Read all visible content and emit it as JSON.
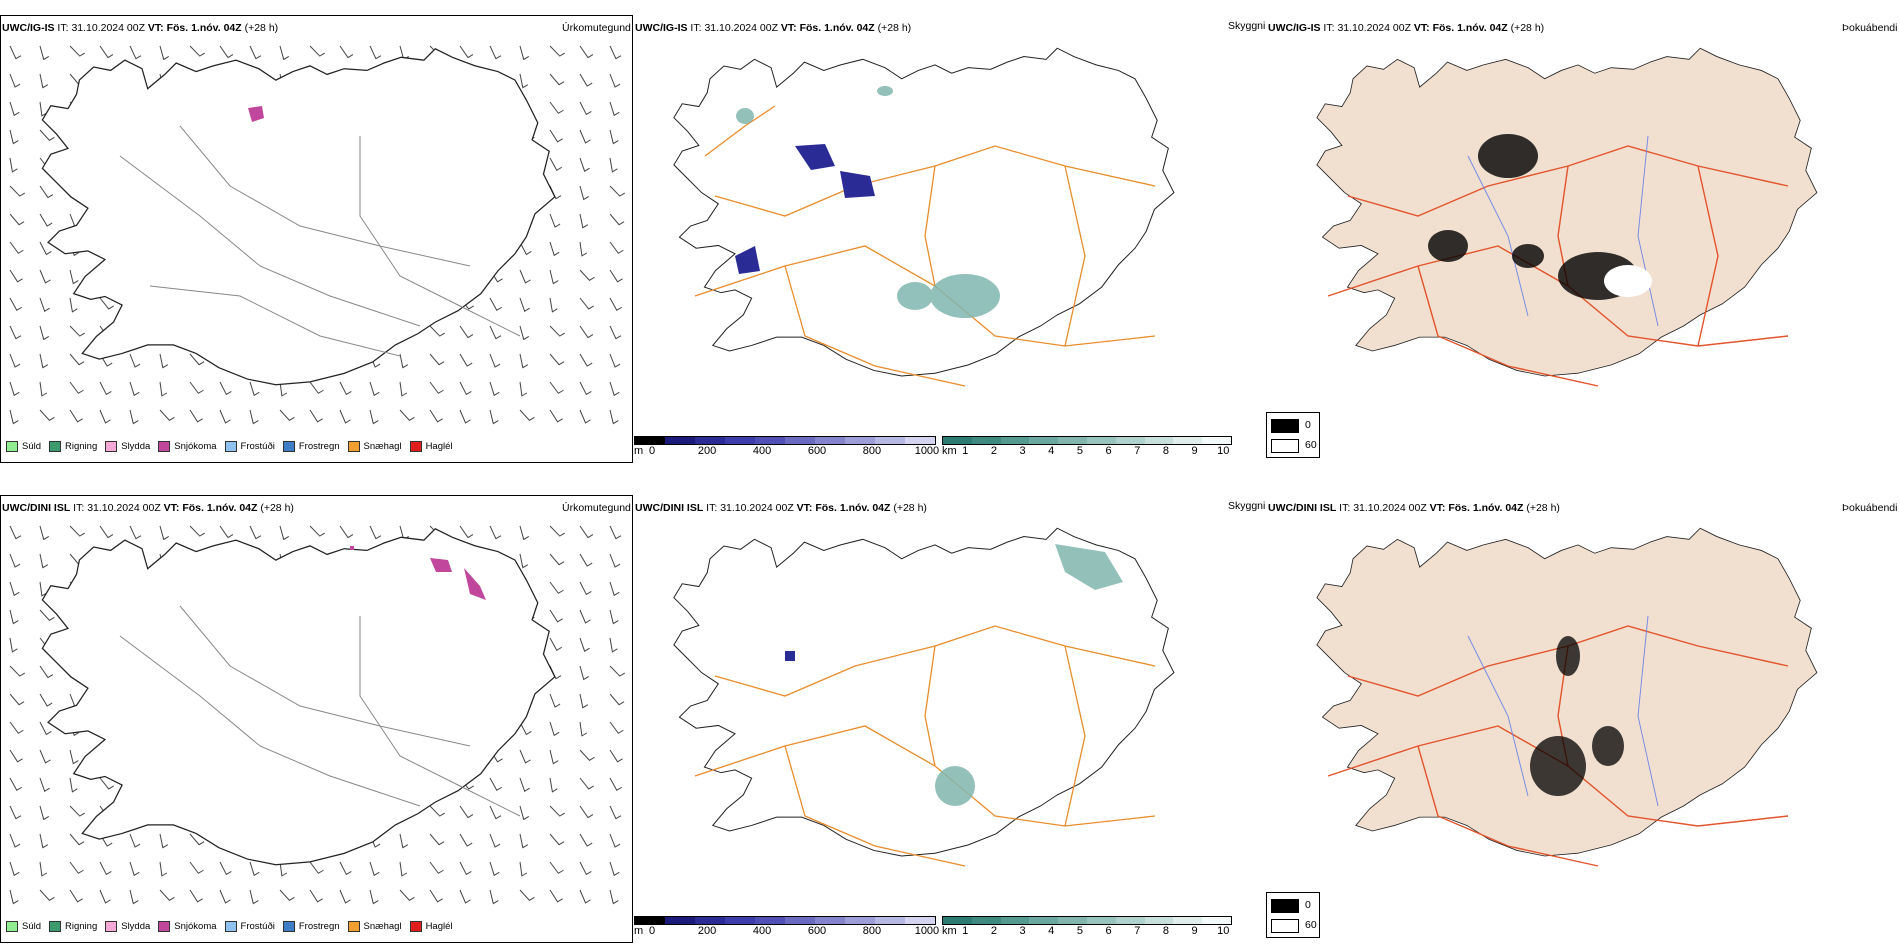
{
  "rows": [
    {
      "model": "UWC/IG-IS",
      "it_label": "IT:",
      "it_value": "31.10.2024 00Z",
      "vt_label": "VT:",
      "vt_value": "Fös. 1.nóv. 04Z",
      "lead": "(+28 h)",
      "precip_title": "Úrkomutegund",
      "cloud_title": "Skyggni",
      "fog_title": "Þokuábendi"
    },
    {
      "model": "UWC/DINI ISL",
      "it_label": "IT:",
      "it_value": "31.10.2024 00Z",
      "vt_label": "VT:",
      "vt_value": "Fös. 1.nóv. 04Z",
      "lead": "(+28 h)",
      "precip_title": "Úrkomutegund",
      "cloud_title": "Skyggni",
      "fog_title": "Þokuábendi"
    }
  ],
  "precip_legend": [
    {
      "label": "Súld",
      "color": "#90ee90"
    },
    {
      "label": "Rigning",
      "color": "#3c9b6e"
    },
    {
      "label": "Slydda",
      "color": "#f4a9d6"
    },
    {
      "label": "Snjókoma",
      "color": "#c0479b"
    },
    {
      "label": "Frostúði",
      "color": "#8ec2f0"
    },
    {
      "label": "Frostregn",
      "color": "#3d7ec7"
    },
    {
      "label": "Snæhagl",
      "color": "#f0a030"
    },
    {
      "label": "Haglél",
      "color": "#e21d1d"
    }
  ],
  "ceiling_scale": {
    "unit": "m",
    "ticks": [
      "0",
      "200",
      "400",
      "600",
      "800",
      "1000"
    ]
  },
  "visibility_scale": {
    "unit": "km",
    "ticks": [
      "1",
      "2",
      "3",
      "4",
      "5",
      "6",
      "7",
      "8",
      "9",
      "10"
    ]
  },
  "fog_scale": {
    "ticks": [
      "0",
      "60"
    ]
  },
  "colors": {
    "ceiling": [
      "#000000",
      "#1a1a7a",
      "#2b2b96",
      "#3c3caa",
      "#5050b4",
      "#6a6ac0",
      "#8484cc",
      "#9d9dd8",
      "#b8b8e4",
      "#d4d4f0"
    ],
    "visibility": [
      "#2d7c72",
      "#3e8a80",
      "#549a90",
      "#6aa8a0",
      "#80b6ae",
      "#98c4be",
      "#b0d2cc",
      "#c8e0dc",
      "#dfeeeb",
      "#f4faf9"
    ],
    "land_fog": "#f1dfcf",
    "roads": "#e88d2c",
    "fog_roads": "#e2542c",
    "rivers": "#6f85e8",
    "snow": "#c0479b"
  }
}
